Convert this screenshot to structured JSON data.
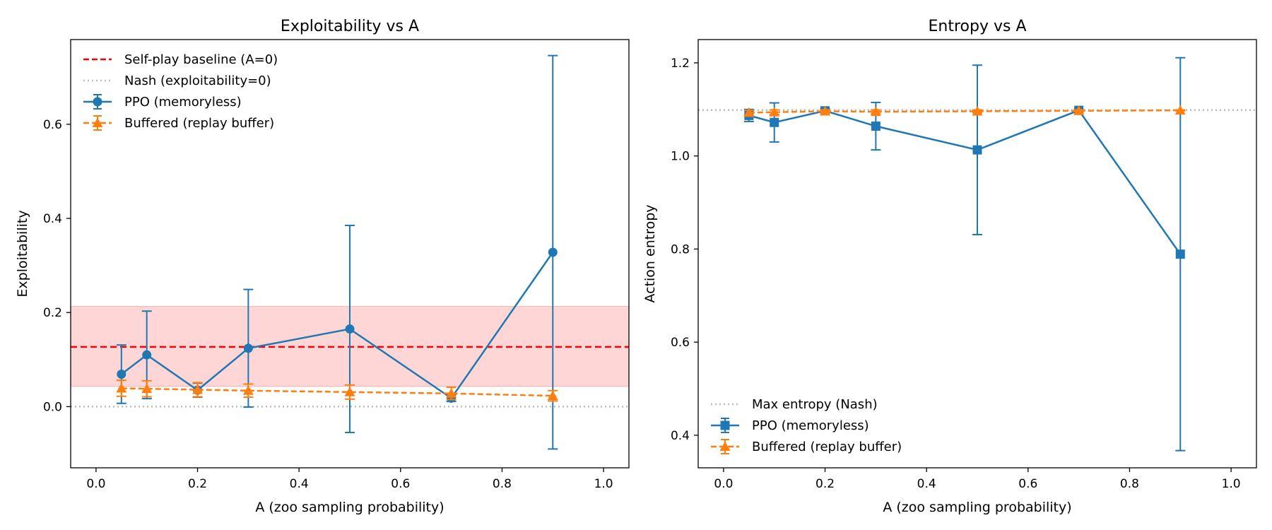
{
  "chart_data": [
    {
      "type": "line",
      "title": "Exploitability vs A",
      "xlabel": "A (zoo sampling probability)",
      "ylabel": "Exploitability",
      "xlim": [
        -0.05,
        1.05
      ],
      "ylim": [
        -0.13,
        0.78
      ],
      "xticks": [
        "0.0",
        "0.2",
        "0.4",
        "0.6",
        "0.8",
        "1.0"
      ],
      "yticks": [
        "0.0",
        "0.2",
        "0.4",
        "0.6"
      ],
      "grid": false,
      "legend_position": "top-left",
      "baseline": {
        "name": "Self-play baseline (A=0)",
        "value": 0.127,
        "band": [
          0.043,
          0.213
        ],
        "color": "#ff0000"
      },
      "reference": {
        "name": "Nash (exploitability=0)",
        "value": 0.0,
        "color": "#bbbbbb"
      },
      "series": [
        {
          "name": "PPO (memoryless)",
          "color": "#1f77b4",
          "marker": "circle",
          "x": [
            0.05,
            0.1,
            0.2,
            0.3,
            0.5,
            0.7,
            0.9
          ],
          "y": [
            0.069,
            0.11,
            0.035,
            0.124,
            0.165,
            0.018,
            0.328
          ],
          "err": [
            0.062,
            0.093,
            0.015,
            0.125,
            0.22,
            0.007,
            0.418
          ]
        },
        {
          "name": "Buffered (replay buffer)",
          "color": "#ff7f0e",
          "marker": "triangle",
          "x": [
            0.05,
            0.1,
            0.2,
            0.3,
            0.5,
            0.7,
            0.9
          ],
          "y": [
            0.039,
            0.038,
            0.036,
            0.034,
            0.031,
            0.028,
            0.023
          ],
          "err": [
            0.017,
            0.017,
            0.015,
            0.014,
            0.015,
            0.013,
            0.011
          ]
        }
      ]
    },
    {
      "type": "line",
      "title": "Entropy vs A",
      "xlabel": "A (zoo sampling probability)",
      "ylabel": "Action entropy",
      "xlim": [
        -0.05,
        1.05
      ],
      "ylim": [
        0.33,
        1.25
      ],
      "xticks": [
        "0.0",
        "0.2",
        "0.4",
        "0.6",
        "0.8",
        "1.0"
      ],
      "yticks": [
        "0.4",
        "0.6",
        "0.8",
        "1.0",
        "1.2"
      ],
      "grid": false,
      "legend_position": "bottom-left",
      "reference": {
        "name": "Max entropy (Nash)",
        "value": 1.0986,
        "color": "#bbbbbb"
      },
      "series": [
        {
          "name": "PPO (memoryless)",
          "color": "#1f77b4",
          "marker": "square",
          "x": [
            0.05,
            0.1,
            0.2,
            0.3,
            0.5,
            0.7,
            0.9
          ],
          "y": [
            1.087,
            1.072,
            1.097,
            1.064,
            1.013,
            1.098,
            0.789
          ],
          "err": [
            0.013,
            0.042,
            0.004,
            0.051,
            0.182,
            0.002,
            0.422
          ]
        },
        {
          "name": "Buffered (replay buffer)",
          "color": "#ff7f0e",
          "marker": "triangle",
          "x": [
            0.05,
            0.1,
            0.2,
            0.3,
            0.5,
            0.7,
            0.9
          ],
          "y": [
            1.093,
            1.094,
            1.096,
            1.095,
            1.096,
            1.097,
            1.098
          ],
          "err": [
            0.005,
            0.005,
            0.003,
            0.004,
            0.003,
            0.002,
            0.001
          ]
        }
      ]
    }
  ]
}
